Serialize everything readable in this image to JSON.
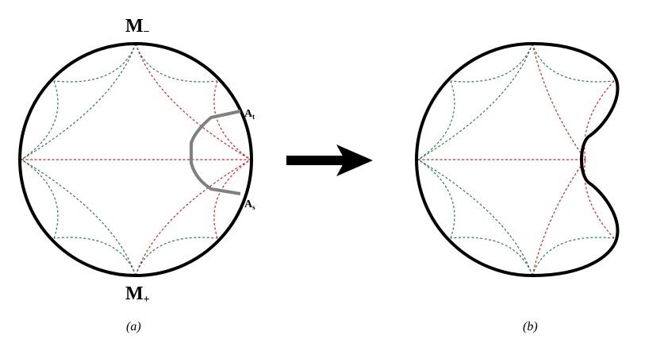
{
  "panel_a": {
    "top_label": "M",
    "top_label_sub": "−",
    "bottom_label": "M",
    "bottom_label_sub": "+",
    "point_t": "A",
    "point_t_sub": "t",
    "point_s": "A",
    "point_s_sub": "s",
    "caption": "(a)"
  },
  "panel_b": {
    "caption": "(b)"
  },
  "colors": {
    "boundary": "#000000",
    "geodesic_green": "#2e7d4f",
    "geodesic_red": "#e02020",
    "cut_curve": "#808080",
    "arrow": "#000000"
  }
}
